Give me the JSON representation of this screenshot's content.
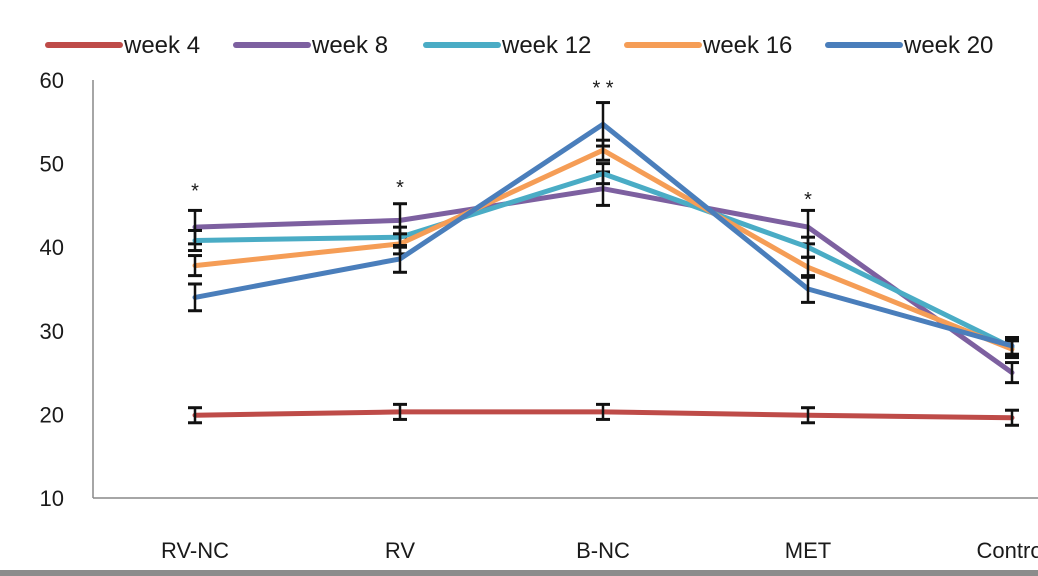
{
  "chart_data": {
    "type": "line",
    "categories": [
      "RV-NC",
      "RV",
      "B-NC",
      "MET",
      "Control"
    ],
    "ylim": [
      10,
      60
    ],
    "yticks": [
      10,
      20,
      30,
      40,
      50,
      60
    ],
    "grid": false,
    "legend_position": "top",
    "series": [
      {
        "name": "week 4",
        "color": "#be4b48",
        "values": [
          19.9,
          20.3,
          20.3,
          19.9,
          19.6
        ],
        "errors": [
          0.9,
          0.9,
          0.9,
          0.9,
          0.9
        ]
      },
      {
        "name": "week 8",
        "color": "#7d60a0",
        "values": [
          42.4,
          43.2,
          47.0,
          42.4,
          25.0
        ],
        "errors": [
          2.0,
          2.0,
          2.0,
          2.0,
          1.2
        ]
      },
      {
        "name": "week 12",
        "color": "#4aacc5",
        "values": [
          40.8,
          41.2,
          48.8,
          40.0,
          28.0
        ],
        "errors": [
          1.2,
          1.2,
          1.2,
          1.2,
          1.0
        ]
      },
      {
        "name": "week 16",
        "color": "#f59d56",
        "values": [
          37.8,
          40.4,
          51.6,
          37.6,
          27.8
        ],
        "errors": [
          1.2,
          1.2,
          1.2,
          1.2,
          1.0
        ]
      },
      {
        "name": "week 20",
        "color": "#4a7ebb",
        "values": [
          34.0,
          38.6,
          54.7,
          35.0,
          28.2
        ],
        "errors": [
          1.6,
          1.6,
          2.6,
          1.6,
          1.0
        ]
      }
    ],
    "annotations": [
      {
        "category": "RV-NC",
        "text": "*",
        "y": 46.9
      },
      {
        "category": "RV",
        "text": "*",
        "y": 47.3
      },
      {
        "category": "B-NC",
        "text": "* *",
        "y": 59.2
      },
      {
        "category": "MET",
        "text": "*",
        "y": 45.9
      }
    ]
  }
}
